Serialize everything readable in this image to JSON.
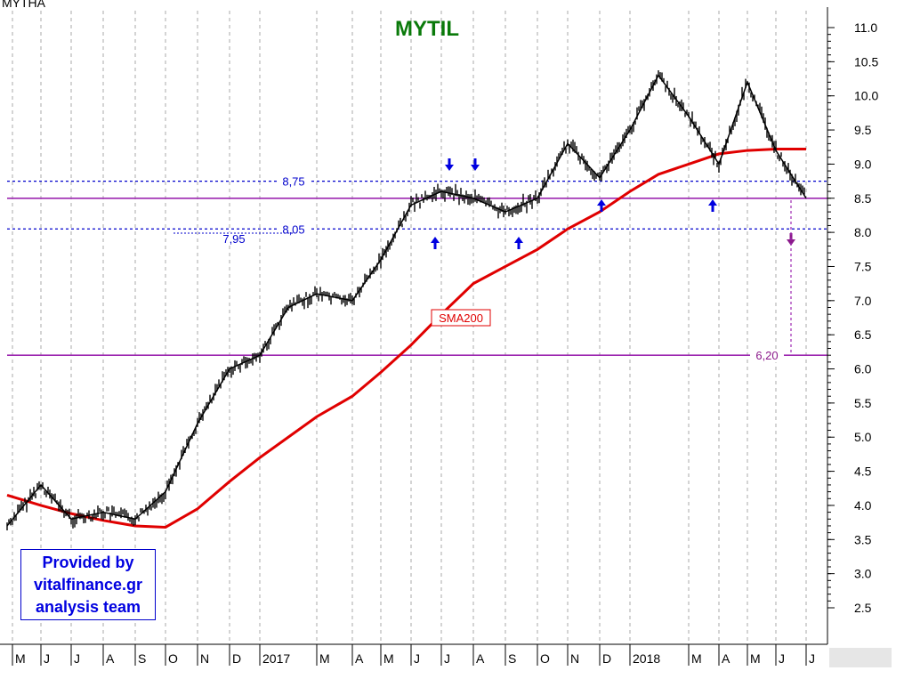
{
  "chart_data": {
    "type": "line",
    "title": "MYTIL",
    "corner_text": "MYTHA",
    "ylabel": "",
    "xlabel": "",
    "ylim": [
      2.0,
      11.3
    ],
    "y_ticks": [
      "11.0",
      "10.5",
      "10.0",
      "9.5",
      "9.0",
      "8.5",
      "8.0",
      "7.5",
      "7.0",
      "6.5",
      "6.0",
      "5.5",
      "5.0",
      "4.5",
      "4.0",
      "3.5",
      "3.0",
      "2.5"
    ],
    "x_ticks": [
      "M",
      "J",
      "J",
      "A",
      "S",
      "O",
      "N",
      "D",
      "2017",
      "M",
      "A",
      "M",
      "J",
      "J",
      "A",
      "S",
      "O",
      "N",
      "D",
      "2018",
      "M",
      "A",
      "M",
      "J",
      "J"
    ],
    "grid": "vertical dashed per month",
    "series": [
      {
        "type": "line",
        "color": "#000000",
        "x": [
          "2016-05",
          "2016-06",
          "2016-07",
          "2016-08",
          "2016-09",
          "2016-10",
          "2016-11",
          "2016-12",
          "2017-01",
          "2017-02",
          "2017-03",
          "2017-04",
          "2017-05",
          "2017-06",
          "2017-07",
          "2017-08",
          "2017-09",
          "2017-10",
          "2017-11",
          "2017-12",
          "2018-01",
          "2018-02",
          "2018-03",
          "2018-04",
          "2018-05",
          "2018-06",
          "2018-07"
        ],
        "values": [
          3.7,
          4.3,
          3.8,
          3.9,
          3.8,
          4.2,
          5.2,
          6.0,
          6.2,
          6.9,
          7.1,
          7.0,
          7.6,
          8.4,
          8.6,
          8.5,
          8.3,
          8.5,
          9.3,
          8.8,
          9.5,
          10.3,
          9.7,
          9.0,
          10.2,
          9.2,
          8.5
        ]
      },
      {
        "name": "SMA200",
        "type": "line",
        "color": "#e00000",
        "x": [
          "2016-05",
          "2016-06",
          "2016-07",
          "2016-08",
          "2016-09",
          "2016-10",
          "2016-11",
          "2016-12",
          "2017-01",
          "2017-02",
          "2017-03",
          "2017-04",
          "2017-05",
          "2017-06",
          "2017-07",
          "2017-08",
          "2017-09",
          "2017-10",
          "2017-11",
          "2017-12",
          "2018-01",
          "2018-02",
          "2018-03",
          "2018-04",
          "2018-05",
          "2018-06",
          "2018-07"
        ],
        "values": [
          4.15,
          4.0,
          3.88,
          3.78,
          3.7,
          3.68,
          3.95,
          4.35,
          4.7,
          5.0,
          5.3,
          5.6,
          5.95,
          6.35,
          6.8,
          7.25,
          7.5,
          7.75,
          8.05,
          8.3,
          8.6,
          8.85,
          9.0,
          9.15,
          9.2,
          9.22,
          9.22
        ]
      }
    ],
    "levels": [
      {
        "value": 8.75,
        "label": "8,75",
        "style": "dashed",
        "color": "#0000cc"
      },
      {
        "value": 8.5,
        "label": "",
        "style": "solid",
        "color": "#9c27b0"
      },
      {
        "value": 8.05,
        "label": "8,05",
        "style": "dashed",
        "color": "#0000cc"
      },
      {
        "value": 6.2,
        "label": "6,20",
        "style": "solid",
        "color": "#9c27b0"
      }
    ],
    "annotations": {
      "low_label": "7,95",
      "sma_label": "SMA200",
      "up_arrows": [
        "2017-07",
        "2017-09",
        "2017-12",
        "2018-04"
      ],
      "down_arrows": [
        "2017-07",
        "2017-08"
      ],
      "target_arrow": "2018-06"
    },
    "credit": {
      "lines": [
        "Provided by",
        "vitalfinance.gr",
        "analysis team"
      ],
      "color": "#0000e0"
    }
  }
}
